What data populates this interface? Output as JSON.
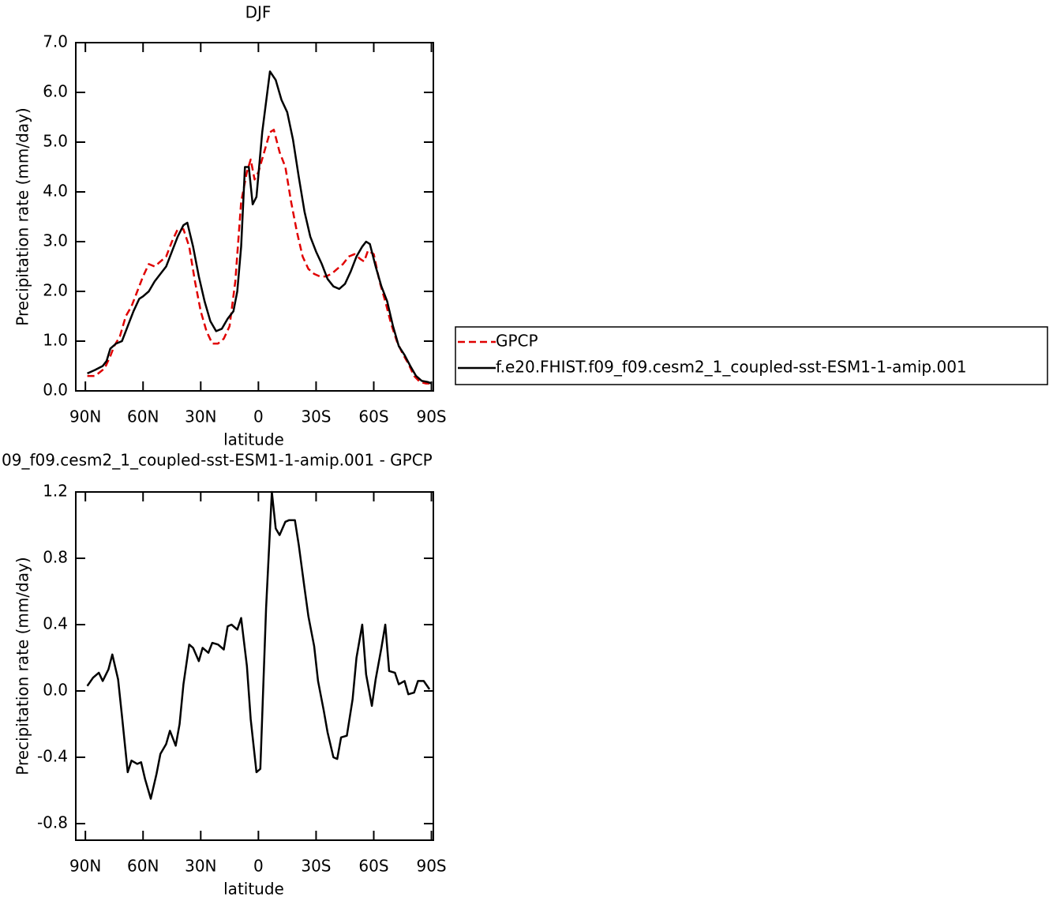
{
  "chart_data": [
    {
      "type": "line",
      "title": "DJF",
      "x_label": "latitude",
      "y_label": "Precipitation rate (mm/day)",
      "xlim": [
        95,
        -91
      ],
      "ylim": [
        0,
        7
      ],
      "xticks": [
        {
          "value": 90,
          "label": "90N"
        },
        {
          "value": 60,
          "label": "60N"
        },
        {
          "value": 30,
          "label": "30N"
        },
        0,
        {
          "value": -30,
          "label": "30S"
        },
        {
          "value": -60,
          "label": "60S"
        },
        {
          "value": -90,
          "label": "90S"
        }
      ],
      "yticks": [
        {
          "value": 0,
          "label": "0.0"
        },
        {
          "value": 1,
          "label": "1.0"
        },
        {
          "value": 2,
          "label": "2.0"
        },
        {
          "value": 3,
          "label": "3.0"
        },
        {
          "value": 4,
          "label": "4.0"
        },
        {
          "value": 5,
          "label": "5.0"
        },
        {
          "value": 6,
          "label": "6.0"
        },
        {
          "value": 7,
          "label": "7.0"
        }
      ],
      "legend": "right",
      "series": [
        {
          "name": "GPCP",
          "color": "#e00000",
          "line_style": "dashed",
          "x": [
            89,
            85,
            80,
            77,
            75,
            72,
            69,
            66,
            63,
            60,
            57,
            54,
            51,
            48,
            45,
            42,
            39,
            36,
            33,
            30,
            27,
            24,
            21,
            18,
            15,
            12,
            9,
            6,
            4,
            2,
            0,
            -3,
            -6,
            -8,
            -11,
            -14,
            -17,
            -20,
            -23,
            -26,
            -29,
            -32,
            -35,
            -38,
            -41,
            -44,
            -47,
            -50,
            -53,
            -55,
            -57,
            -60,
            -63,
            -66,
            -69,
            -72,
            -75,
            -78,
            -81,
            -84,
            -87,
            -89
          ],
          "values": [
            0.3,
            0.3,
            0.45,
            0.7,
            0.9,
            1.1,
            1.5,
            1.7,
            2.0,
            2.3,
            2.55,
            2.5,
            2.6,
            2.7,
            3.0,
            3.25,
            3.25,
            2.9,
            2.2,
            1.6,
            1.2,
            0.95,
            0.95,
            1.05,
            1.3,
            2.2,
            3.8,
            4.4,
            4.65,
            4.25,
            4.4,
            4.8,
            5.2,
            5.25,
            4.8,
            4.5,
            3.8,
            3.2,
            2.7,
            2.45,
            2.35,
            2.3,
            2.3,
            2.35,
            2.45,
            2.55,
            2.7,
            2.75,
            2.65,
            2.6,
            2.82,
            2.75,
            2.2,
            1.8,
            1.35,
            1.0,
            0.75,
            0.55,
            0.3,
            0.18,
            0.15,
            0.15
          ]
        },
        {
          "name": "f.e20.FHIST.f09_f09.cesm2_1_coupled-sst-ESM1-1-amip.001",
          "color": "#000000",
          "line_style": "solid",
          "x": [
            89,
            85,
            81,
            79,
            77,
            74,
            71,
            68,
            65,
            62,
            60,
            57,
            54,
            51,
            48,
            45,
            42,
            39,
            37,
            34,
            31,
            28,
            25,
            22,
            19,
            16,
            13,
            11,
            9,
            7,
            5,
            3,
            1,
            -2,
            -6,
            -9,
            -12,
            -15,
            -18,
            -21,
            -24,
            -27,
            -30,
            -33,
            -36,
            -39,
            -42,
            -45,
            -48,
            -51,
            -54,
            -56,
            -58,
            -61,
            -64,
            -67,
            -70,
            -73,
            -76,
            -79,
            -82,
            -85,
            -88,
            -90
          ],
          "values": [
            0.35,
            0.42,
            0.5,
            0.6,
            0.85,
            0.95,
            1.0,
            1.3,
            1.6,
            1.85,
            1.9,
            2.0,
            2.2,
            2.35,
            2.5,
            2.8,
            3.1,
            3.33,
            3.38,
            2.9,
            2.3,
            1.8,
            1.4,
            1.2,
            1.25,
            1.45,
            1.6,
            2.0,
            2.9,
            4.5,
            4.5,
            3.75,
            3.9,
            5.2,
            6.42,
            6.25,
            5.85,
            5.6,
            5.05,
            4.3,
            3.6,
            3.1,
            2.8,
            2.55,
            2.25,
            2.1,
            2.05,
            2.15,
            2.4,
            2.7,
            2.9,
            3.0,
            2.95,
            2.5,
            2.1,
            1.8,
            1.3,
            0.9,
            0.72,
            0.5,
            0.3,
            0.2,
            0.18,
            0.15
          ]
        }
      ]
    },
    {
      "type": "line",
      "title": "09_f09.cesm2_1_coupled-sst-ESM1-1-amip.001 - GPCP",
      "x_label": "latitude",
      "y_label": "Precipitation rate (mm/day)",
      "xlim": [
        95,
        -91
      ],
      "ylim": [
        -0.9,
        1.2
      ],
      "xticks": [
        {
          "value": 90,
          "label": "90N"
        },
        {
          "value": 60,
          "label": "60N"
        },
        {
          "value": 30,
          "label": "30N"
        },
        0,
        {
          "value": -30,
          "label": "30S"
        },
        {
          "value": -60,
          "label": "60S"
        },
        {
          "value": -90,
          "label": "90S"
        }
      ],
      "yticks": [
        {
          "value": -0.8,
          "label": "-0.8"
        },
        {
          "value": -0.4,
          "label": "-0.4"
        },
        {
          "value": 0,
          "label": "0.0"
        },
        0.4,
        0.8,
        1.2
      ],
      "color": "#000000",
      "x": [
        89,
        86,
        83,
        81,
        78,
        76,
        73,
        71,
        68,
        66,
        63,
        61,
        59,
        56,
        53,
        51,
        48,
        46,
        43,
        41,
        39,
        36,
        34,
        31,
        29,
        26,
        24,
        21,
        18,
        16,
        14,
        11,
        9,
        6,
        4,
        1,
        -1,
        -4,
        -7,
        -9,
        -11,
        -14,
        -16,
        -19,
        -21,
        -24,
        -26,
        -29,
        -31,
        -34,
        -36,
        -39,
        -41,
        -43,
        -46,
        -49,
        -51,
        -54,
        -56,
        -59,
        -61,
        -64,
        -66,
        -68,
        -71,
        -73,
        -76,
        -78,
        -81,
        -83,
        -86,
        -89
      ],
      "values": [
        0.03,
        0.08,
        0.11,
        0.06,
        0.13,
        0.22,
        0.07,
        -0.15,
        -0.49,
        -0.42,
        -0.44,
        -0.43,
        -0.53,
        -0.65,
        -0.5,
        -0.38,
        -0.32,
        -0.24,
        -0.33,
        -0.2,
        0.04,
        0.28,
        0.26,
        0.18,
        0.26,
        0.23,
        0.29,
        0.28,
        0.25,
        0.39,
        0.4,
        0.37,
        0.44,
        0.15,
        -0.17,
        -0.49,
        -0.47,
        0.5,
        1.2,
        0.98,
        0.94,
        1.02,
        1.03,
        1.03,
        0.88,
        0.62,
        0.45,
        0.27,
        0.06,
        -0.12,
        -0.25,
        -0.4,
        -0.41,
        -0.28,
        -0.27,
        -0.05,
        0.2,
        0.4,
        0.1,
        -0.09,
        0.07,
        0.26,
        0.4,
        0.12,
        0.11,
        0.04,
        0.06,
        -0.02,
        -0.01,
        0.06,
        0.06,
        0.01
      ]
    }
  ]
}
